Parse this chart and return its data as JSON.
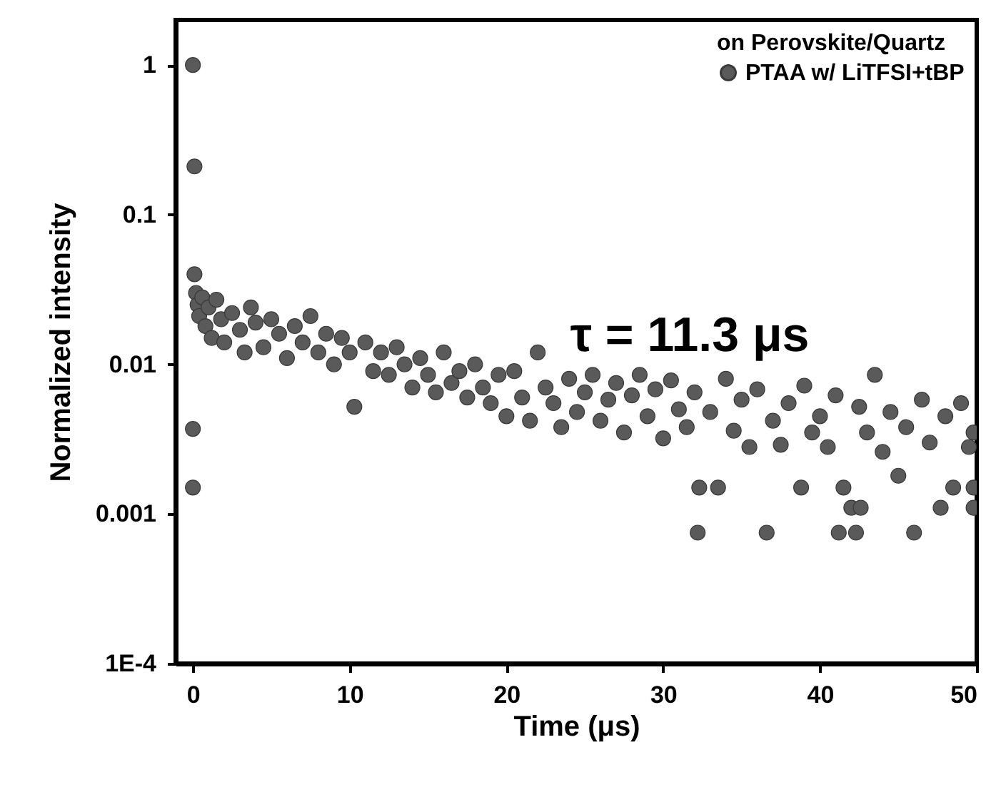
{
  "chart_data": {
    "type": "scatter",
    "xlabel": "Time (μs)",
    "ylabel": "Normalized intensity",
    "legend_title": "on Perovskite/Quartz",
    "annotations": [
      "τ = 11.3 μs"
    ],
    "log": "y",
    "xlim": [
      -1.1,
      50
    ],
    "ylim": [
      0.0001,
      2
    ],
    "xticks": [
      0,
      10,
      20,
      30,
      40,
      50
    ],
    "yticks": [
      1,
      0.1,
      0.01,
      0.001,
      {
        "value": 0.0001,
        "label": "1E-4"
      }
    ],
    "grid": false,
    "legend": "top right",
    "marker": "circle",
    "series": [
      {
        "name": "PTAA w/ LiTFSI+tBP",
        "color": "#5a5a5a",
        "x": [
          0,
          0.1,
          0.1,
          0,
          0,
          0.2,
          0.3,
          0.4,
          0.6,
          0.8,
          1,
          1.2,
          1.5,
          1.8,
          2,
          2.5,
          3,
          3.3,
          3.7,
          4,
          4.5,
          5,
          5.5,
          6,
          6.5,
          7,
          7.5,
          8,
          8.5,
          9,
          9.5,
          10,
          10.3,
          11,
          11.5,
          12,
          12.5,
          13,
          13.5,
          14,
          14.5,
          15,
          15.5,
          16,
          16.5,
          17,
          17.5,
          18,
          18.5,
          19,
          19.5,
          20,
          20.5,
          21,
          21.5,
          22,
          22.5,
          23,
          23.5,
          24,
          24.5,
          25,
          25.5,
          26,
          26.5,
          27,
          27.5,
          28,
          28.5,
          29,
          29.5,
          30,
          30.5,
          31,
          31.5,
          32,
          32.2,
          32.3,
          33,
          33.5,
          34,
          34.5,
          35,
          35.5,
          36,
          36.6,
          37,
          37.5,
          38,
          38.8,
          39,
          39.5,
          40,
          40.5,
          41,
          41.2,
          41.5,
          42,
          42.3,
          42.5,
          42.6,
          43,
          43.5,
          44,
          44.5,
          45,
          45.5,
          46,
          46.5,
          47,
          47.7,
          48,
          48.5,
          49,
          49.5,
          49.8,
          49.8,
          49.8
        ],
        "values": [
          1,
          0.21,
          0.04,
          0.0037,
          0.0015,
          0.03,
          0.025,
          0.021,
          0.028,
          0.018,
          0.024,
          0.015,
          0.027,
          0.02,
          0.014,
          0.022,
          0.017,
          0.012,
          0.024,
          0.019,
          0.013,
          0.02,
          0.016,
          0.011,
          0.018,
          0.014,
          0.021,
          0.012,
          0.016,
          0.01,
          0.015,
          0.012,
          0.0052,
          0.014,
          0.009,
          0.012,
          0.0085,
          0.013,
          0.01,
          0.007,
          0.011,
          0.0085,
          0.0065,
          0.012,
          0.0075,
          0.009,
          0.006,
          0.01,
          0.007,
          0.0055,
          0.0085,
          0.0045,
          0.009,
          0.006,
          0.0042,
          0.012,
          0.007,
          0.0055,
          0.0038,
          0.008,
          0.0048,
          0.0065,
          0.0085,
          0.0042,
          0.0058,
          0.0075,
          0.0035,
          0.0062,
          0.0085,
          0.0045,
          0.0068,
          0.0032,
          0.0078,
          0.005,
          0.0038,
          0.0065,
          0.00075,
          0.0015,
          0.0048,
          0.0015,
          0.008,
          0.0036,
          0.0058,
          0.0028,
          0.0068,
          0.00075,
          0.0042,
          0.0029,
          0.0055,
          0.0015,
          0.0072,
          0.0035,
          0.0045,
          0.0028,
          0.0062,
          0.00075,
          0.0015,
          0.0011,
          0.00075,
          0.0052,
          0.0011,
          0.0035,
          0.0085,
          0.0026,
          0.0048,
          0.0018,
          0.0038,
          0.00075,
          0.0058,
          0.003,
          0.0011,
          0.0045,
          0.0015,
          0.0055,
          0.0028,
          0.0035,
          0.0015,
          0.0011
        ]
      }
    ]
  }
}
